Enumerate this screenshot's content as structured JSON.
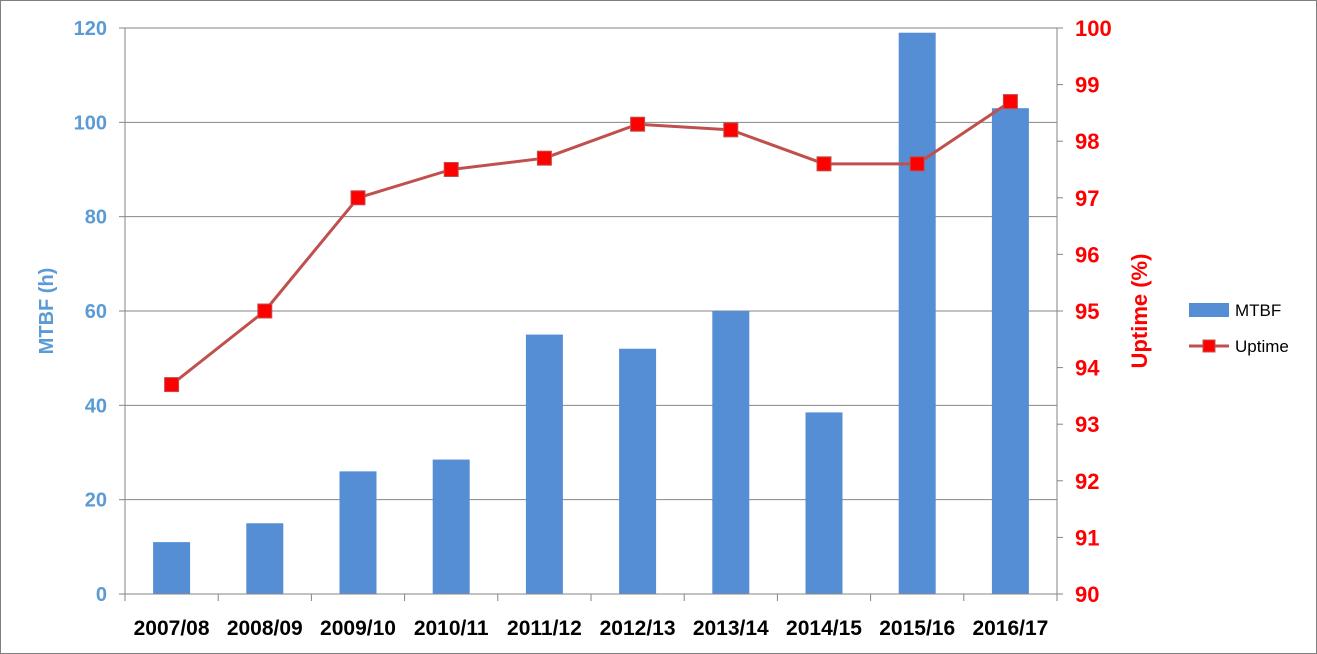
{
  "chart_data": {
    "type": "bar+line",
    "categories": [
      "2007/08",
      "2008/09",
      "2009/10",
      "2010/11",
      "2011/12",
      "2012/13",
      "2013/14",
      "2014/15",
      "2015/16",
      "2016/17"
    ],
    "series": [
      {
        "name": "MTBF",
        "type": "bar",
        "axis": "left",
        "color": "#558ed5",
        "values": [
          11,
          15,
          26,
          28.5,
          55,
          52,
          60,
          38.5,
          119,
          103
        ]
      },
      {
        "name": "Uptime",
        "type": "line",
        "axis": "right",
        "line_color": "#c0504d",
        "marker_color": "#ff0000",
        "marker": "square",
        "values": [
          93.7,
          95.0,
          97.0,
          97.5,
          97.7,
          98.3,
          98.2,
          97.6,
          97.6,
          98.7
        ]
      }
    ],
    "y_left": {
      "label": "MTBF (h)",
      "min": 0,
      "max": 120,
      "ticks": [
        "0",
        "20",
        "40",
        "60",
        "80",
        "100",
        "120"
      ],
      "color": "#5b9bd5"
    },
    "y_right": {
      "label": "Uptime (%)",
      "min": 90,
      "max": 100,
      "ticks": [
        "90",
        "91",
        "92",
        "93",
        "94",
        "95",
        "96",
        "97",
        "98",
        "99",
        "100"
      ],
      "color": "#ff0000"
    },
    "grid": true,
    "legend": {
      "position": "right",
      "entries": [
        "MTBF",
        "Uptime"
      ]
    }
  }
}
